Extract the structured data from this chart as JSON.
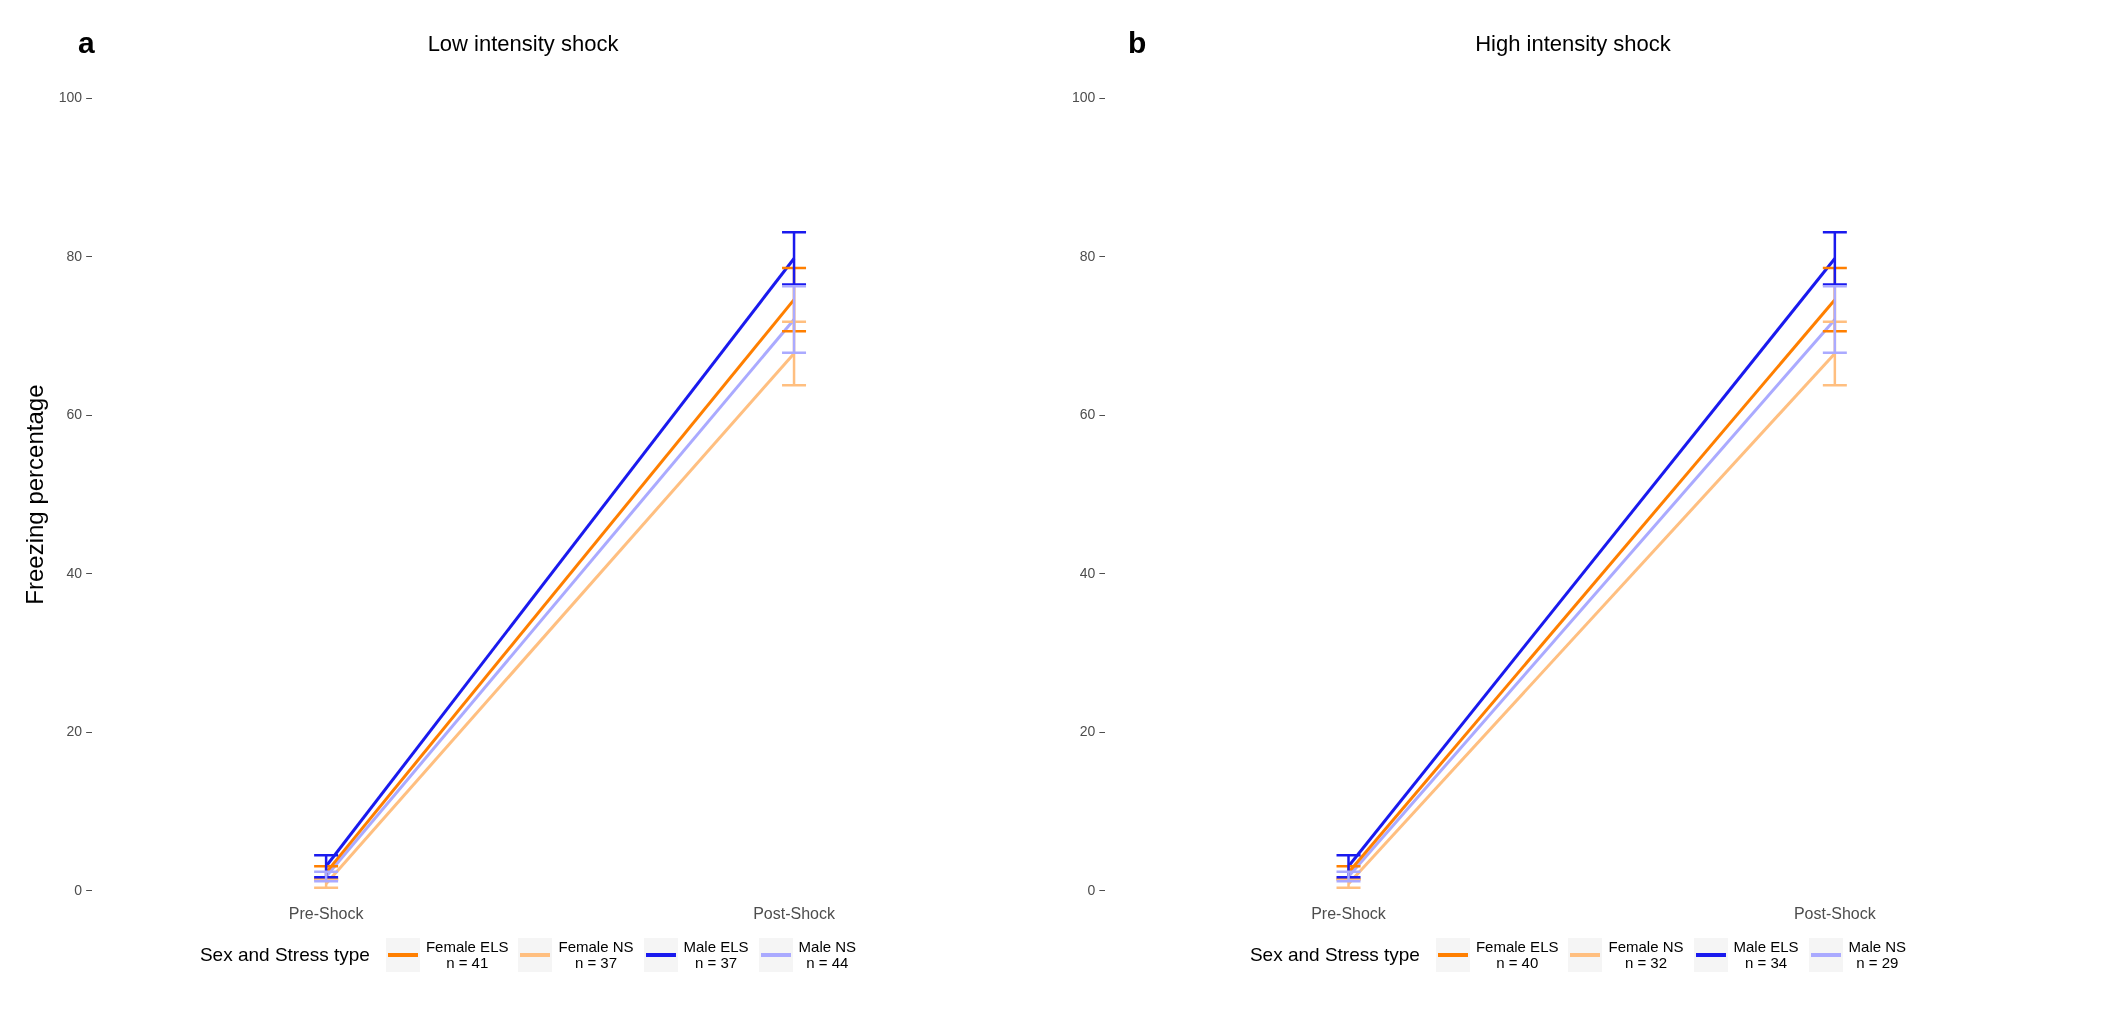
{
  "chart_data": [
    {
      "type": "line",
      "title": "Low intensity shock",
      "annotations": [
        "a"
      ],
      "ylabel": "Freezing percentage",
      "categories": [
        "Pre-Shock",
        "Post-Shock"
      ],
      "ylim": [
        0,
        100
      ],
      "yticks": [
        0,
        20,
        40,
        60,
        80,
        100
      ],
      "grid": false,
      "legend": "bottom",
      "legend_title": "Sex and Stress type",
      "marker": "none",
      "series": [
        {
          "name": "Female ELS\nn = 41",
          "color": "#ff7f00",
          "values": [
            2.3,
            74.6
          ],
          "errors": [
            0.8,
            4
          ]
        },
        {
          "name": "Female NS\nn = 37",
          "color": "#ffbf80",
          "values": [
            0.9,
            67.8
          ],
          "errors": [
            0.5,
            4
          ]
        },
        {
          "name": "Male ELS\nn = 37",
          "color": "#1a1aee",
          "values": [
            3.1,
            79.8
          ],
          "errors": [
            1.4,
            3.3
          ]
        },
        {
          "name": "Male NS\nn = 44",
          "color": "#aaaaff",
          "values": [
            1.8,
            72.1
          ],
          "errors": [
            0.6,
            4.2
          ]
        }
      ]
    },
    {
      "type": "line",
      "title": "High intensity shock",
      "annotations": [
        "b"
      ],
      "categories": [
        "Pre-Shock",
        "Post-Shock"
      ],
      "ylim": [
        0,
        100
      ],
      "yticks": [
        0,
        20,
        40,
        60,
        80,
        100
      ],
      "grid": false,
      "legend": "bottom",
      "legend_title": "Sex and Stress type",
      "marker": "none",
      "series": [
        {
          "name": "Female ELS\nn = 40",
          "color": "#ff7f00",
          "values": [
            2.3,
            74.6
          ],
          "errors": [
            0.8,
            4
          ]
        },
        {
          "name": "Female NS\nn = 32",
          "color": "#ffbf80",
          "values": [
            0.9,
            67.8
          ],
          "errors": [
            0.5,
            4
          ]
        },
        {
          "name": "Male ELS\nn = 34",
          "color": "#1a1aee",
          "values": [
            3.1,
            79.8
          ],
          "errors": [
            1.4,
            3.3
          ]
        },
        {
          "name": "Male NS\nn = 29",
          "color": "#aaaaff",
          "values": [
            1.8,
            72.1
          ],
          "errors": [
            0.6,
            4.2
          ]
        }
      ]
    }
  ]
}
